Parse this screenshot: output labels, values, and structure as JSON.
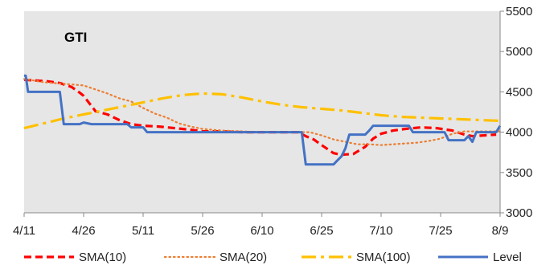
{
  "chart_data": {
    "type": "line",
    "title": "GTI",
    "xlabel": "",
    "ylabel": "",
    "x_ticks": [
      "4/11",
      "4/26",
      "5/11",
      "5/26",
      "6/10",
      "6/25",
      "7/10",
      "7/25",
      "8/9"
    ],
    "x_tick_days": [
      0,
      15,
      30,
      45,
      60,
      75,
      90,
      105,
      120
    ],
    "ylim": [
      3000,
      5500
    ],
    "y_ticks": [
      3000,
      3500,
      4000,
      4500,
      5000,
      5500
    ],
    "y_axis_side": "right",
    "grid": false,
    "plot_background": "#e6e6e6",
    "legend_position": "bottom",
    "series": [
      {
        "name": "SMA(10)",
        "color": "#ff0000",
        "style": "dashed",
        "x": [
          0,
          3,
          6,
          9,
          12,
          14,
          15,
          18,
          21,
          24,
          27,
          30,
          34,
          38,
          42,
          45,
          50,
          55,
          60,
          65,
          69,
          71,
          73,
          75,
          78,
          80,
          83,
          86,
          88,
          90,
          93,
          96,
          100,
          104,
          108,
          111,
          113,
          116,
          119
        ],
        "y": [
          4650,
          4640,
          4630,
          4610,
          4560,
          4490,
          4450,
          4260,
          4220,
          4150,
          4100,
          4080,
          4070,
          4050,
          4030,
          4010,
          4010,
          4000,
          4000,
          4000,
          4000,
          3950,
          3910,
          3840,
          3740,
          3720,
          3730,
          3820,
          3920,
          3980,
          4020,
          4040,
          4060,
          4050,
          4020,
          3970,
          3950,
          3960,
          3970
        ]
      },
      {
        "name": "SMA(20)",
        "color": "#ed7d31",
        "style": "dotted",
        "x": [
          0,
          5,
          10,
          15,
          18,
          21,
          24,
          27,
          30,
          33,
          36,
          39,
          42,
          45,
          50,
          55,
          60,
          65,
          69,
          72,
          75,
          78,
          81,
          84,
          87,
          90,
          93,
          96,
          99,
          102,
          105,
          108,
          111,
          114,
          117,
          120
        ],
        "y": [
          4660,
          4620,
          4600,
          4580,
          4530,
          4480,
          4420,
          4380,
          4300,
          4230,
          4180,
          4110,
          4070,
          4040,
          4020,
          4010,
          4000,
          4000,
          4000,
          4000,
          3960,
          3910,
          3880,
          3850,
          3850,
          3840,
          3850,
          3860,
          3870,
          3890,
          3920,
          3980,
          4010,
          4010,
          4010,
          4010
        ]
      },
      {
        "name": "SMA(100)",
        "color": "#ffc000",
        "style": "dashdot",
        "x": [
          0,
          5,
          10,
          15,
          20,
          25,
          30,
          35,
          40,
          45,
          50,
          55,
          60,
          65,
          70,
          75,
          80,
          85,
          90,
          95,
          100,
          105,
          110,
          115,
          120
        ],
        "y": [
          4050,
          4110,
          4170,
          4220,
          4270,
          4320,
          4370,
          4420,
          4460,
          4480,
          4470,
          4430,
          4380,
          4340,
          4310,
          4290,
          4270,
          4240,
          4210,
          4190,
          4180,
          4170,
          4160,
          4150,
          4140
        ]
      },
      {
        "name": "Level",
        "color": "#4472c4",
        "style": "solid",
        "x": [
          0,
          0.4,
          1,
          3,
          7,
          9,
          10,
          11,
          12,
          13,
          14,
          15,
          17,
          20,
          22,
          24,
          26,
          27,
          28,
          30,
          31,
          35,
          40,
          45,
          50,
          55,
          60,
          65,
          70,
          71,
          72,
          73,
          76,
          78,
          79,
          80,
          81,
          82,
          83,
          84,
          86,
          87,
          88,
          90,
          92,
          94,
          96,
          97,
          98,
          99,
          101,
          103,
          104,
          106,
          107,
          109,
          111,
          112,
          113,
          114,
          115,
          116,
          118,
          119,
          120
        ],
        "y": [
          4700,
          4700,
          4500,
          4500,
          4500,
          4500,
          4100,
          4100,
          4100,
          4100,
          4100,
          4120,
          4100,
          4100,
          4100,
          4100,
          4100,
          4060,
          4060,
          4060,
          4000,
          4000,
          4000,
          4000,
          4000,
          4000,
          4000,
          4000,
          4000,
          3600,
          3600,
          3600,
          3600,
          3600,
          3650,
          3700,
          3800,
          3970,
          3970,
          3970,
          3970,
          4020,
          4080,
          4080,
          4080,
          4080,
          4080,
          4080,
          4000,
          4000,
          4000,
          4000,
          4000,
          4000,
          3900,
          3900,
          3900,
          3950,
          3880,
          4000,
          4000,
          4000,
          4000,
          4000,
          4080
        ]
      }
    ]
  }
}
